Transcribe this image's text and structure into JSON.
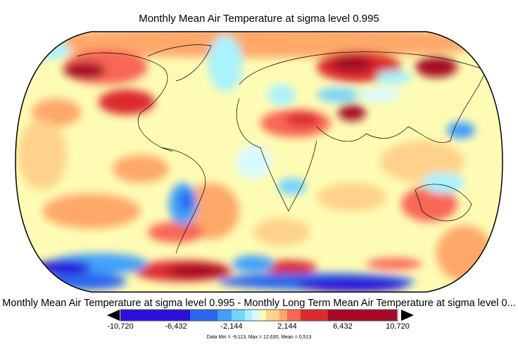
{
  "title": "Monthly Mean Air Temperature at sigma level 0.995",
  "subtitle": "Monthly Mean Air Temperature at sigma level 0.995 - Monthly Long Term Mean Air Temperature at sigma level 0...",
  "colorbar": {
    "colors": [
      "#2a10d8",
      "#2a66f0",
      "#42a0fa",
      "#76d4fc",
      "#aaf2fc",
      "#d8fafe",
      "#fefcb4",
      "#fed28a",
      "#fea86a",
      "#f86656",
      "#dc2a2e",
      "#a60828"
    ],
    "boundaries": [
      -10.72,
      -4.288,
      -3.0,
      -2.144,
      -1.5,
      -1.0,
      0,
      1.0,
      1.5,
      2.144,
      4.288,
      10.72
    ],
    "tick_labels": [
      "-10,720",
      "-6,432",
      "-2,144",
      "2,144",
      "6,432",
      "10,720"
    ],
    "extends": "both"
  },
  "stats": "Data Min = -9,113, Max = 12,630, Mean = 0,513",
  "map": {
    "projection": "robinson",
    "base_color": "#fefcb4",
    "coastline_color": "#000000"
  }
}
